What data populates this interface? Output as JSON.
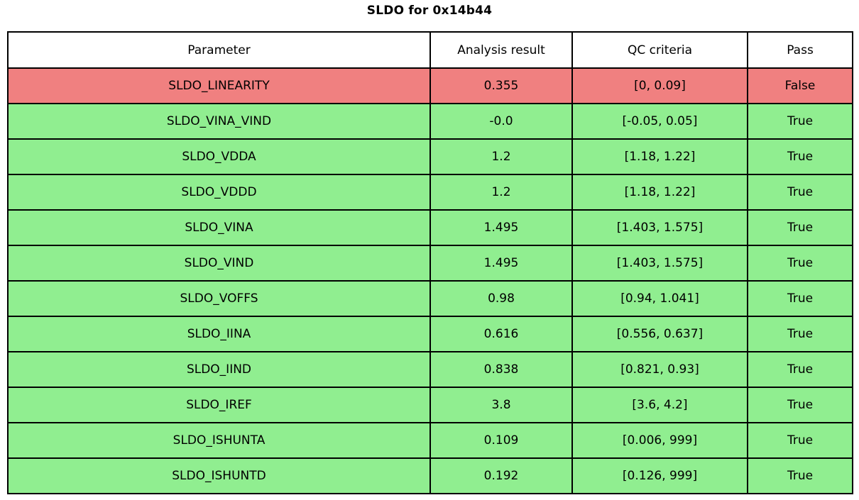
{
  "title": "SLDO for 0x14b44",
  "colors": {
    "pass_row": "#90ee90",
    "fail_row": "#f08080",
    "header_bg": "#ffffff",
    "border": "#000000",
    "text": "#000000"
  },
  "chart_data": {
    "type": "table",
    "title": "SLDO for 0x14b44",
    "columns": [
      "Parameter",
      "Analysis result",
      "QC criteria",
      "Pass"
    ],
    "rows": [
      {
        "parameter": "SLDO_LINEARITY",
        "result": "0.355",
        "criteria": "[0, 0.09]",
        "pass": "False"
      },
      {
        "parameter": "SLDO_VINA_VIND",
        "result": "-0.0",
        "criteria": "[-0.05, 0.05]",
        "pass": "True"
      },
      {
        "parameter": "SLDO_VDDA",
        "result": "1.2",
        "criteria": "[1.18, 1.22]",
        "pass": "True"
      },
      {
        "parameter": "SLDO_VDDD",
        "result": "1.2",
        "criteria": "[1.18, 1.22]",
        "pass": "True"
      },
      {
        "parameter": "SLDO_VINA",
        "result": "1.495",
        "criteria": "[1.403, 1.575]",
        "pass": "True"
      },
      {
        "parameter": "SLDO_VIND",
        "result": "1.495",
        "criteria": "[1.403, 1.575]",
        "pass": "True"
      },
      {
        "parameter": "SLDO_VOFFS",
        "result": "0.98",
        "criteria": "[0.94, 1.041]",
        "pass": "True"
      },
      {
        "parameter": "SLDO_IINA",
        "result": "0.616",
        "criteria": "[0.556, 0.637]",
        "pass": "True"
      },
      {
        "parameter": "SLDO_IIND",
        "result": "0.838",
        "criteria": "[0.821, 0.93]",
        "pass": "True"
      },
      {
        "parameter": "SLDO_IREF",
        "result": "3.8",
        "criteria": "[3.6, 4.2]",
        "pass": "True"
      },
      {
        "parameter": "SLDO_ISHUNTA",
        "result": "0.109",
        "criteria": "[0.006, 999]",
        "pass": "True"
      },
      {
        "parameter": "SLDO_ISHUNTD",
        "result": "0.192",
        "criteria": "[0.126, 999]",
        "pass": "True"
      }
    ]
  }
}
